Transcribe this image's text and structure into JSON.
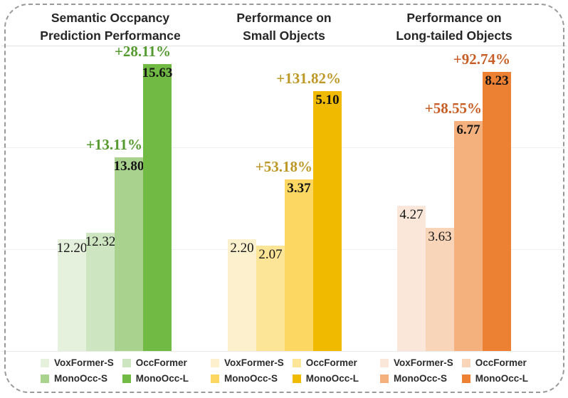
{
  "figure": {
    "border_color": "#999999",
    "grid_color": "#efefef",
    "title_color": "#262626",
    "value_label_color": "#141414",
    "legend_text_color": "#2b2b2b",
    "background_color": "#ffffff"
  },
  "chart_data": [
    {
      "type": "bar",
      "title": "Semantic Occpancy\nPrediction Performance",
      "categories": [
        "VoxFormer-S",
        "OccFormer",
        "MonoOcc-S",
        "MonoOcc-L"
      ],
      "values": [
        12.2,
        12.32,
        13.8,
        15.63
      ],
      "value_labels": [
        "12.20",
        "12.32",
        "13.80",
        "15.63"
      ],
      "gain_labels": [
        null,
        null,
        "+13.11%",
        "+28.11%"
      ],
      "bar_colors": [
        "#e5f0dd",
        "#cde5c0",
        "#a9d28e",
        "#71ba44"
      ],
      "accent_color": "#549a2e",
      "ylim": [
        10,
        16
      ],
      "grid": true,
      "legend_position": "bottom",
      "xlabel": "",
      "ylabel": ""
    },
    {
      "type": "bar",
      "title": "Performance on\nSmall Objects",
      "categories": [
        "VoxFormer-S",
        "OccFormer",
        "MonoOcc-S",
        "MonoOcc-L"
      ],
      "values": [
        2.2,
        2.07,
        3.37,
        5.1
      ],
      "value_labels": [
        "2.20",
        "2.07",
        "3.37",
        "5.10"
      ],
      "gain_labels": [
        null,
        null,
        "+53.18%",
        "+131.82%"
      ],
      "bar_colors": [
        "#fdf1cd",
        "#fde597",
        "#fcd761",
        "#f0ba00"
      ],
      "accent_color": "#bd9827",
      "ylim": [
        0,
        6
      ],
      "grid": true,
      "legend_position": "bottom",
      "xlabel": "",
      "ylabel": ""
    },
    {
      "type": "bar",
      "title": "Performance on\nLong-tailed Objects",
      "categories": [
        "VoxFormer-S",
        "OccFormer",
        "MonoOcc-S",
        "MonoOcc-L"
      ],
      "values": [
        4.27,
        3.63,
        6.77,
        8.23
      ],
      "value_labels": [
        "4.27",
        "3.63",
        "6.77",
        "8.23"
      ],
      "gain_labels": [
        null,
        null,
        "+58.55%",
        "+92.74%"
      ],
      "bar_colors": [
        "#fae7da",
        "#f8d5b9",
        "#f4b17e",
        "#ec8133"
      ],
      "accent_color": "#c75e26",
      "ylim": [
        0,
        9
      ],
      "grid": true,
      "legend_position": "bottom",
      "xlabel": "",
      "ylabel": ""
    }
  ]
}
